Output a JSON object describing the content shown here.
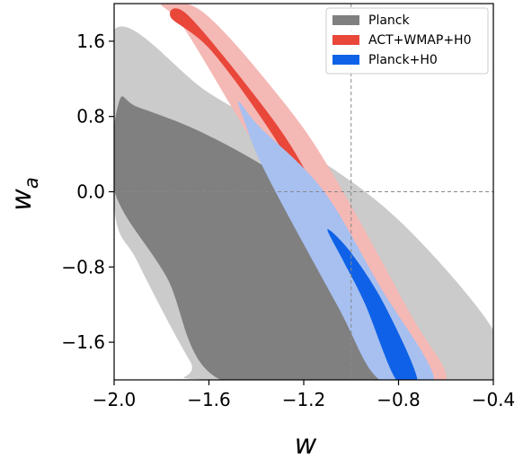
{
  "chart_data": {
    "type": "contour",
    "xlabel": "w",
    "ylabel": "w_a",
    "xlim": [
      -2.0,
      -0.4
    ],
    "ylim": [
      -2.0,
      2.0
    ],
    "xticks": [
      -2.0,
      -1.6,
      -1.2,
      -0.8,
      -0.4
    ],
    "xtick_labels": [
      "−2.0",
      "−1.6",
      "−1.2",
      "−0.8",
      "−0.4"
    ],
    "yticks": [
      -1.6,
      -0.8,
      0.0,
      0.8,
      1.6
    ],
    "ytick_labels": [
      "−1.6",
      "−0.8",
      "0.0",
      "0.8",
      "1.6"
    ],
    "reference_lines": {
      "x": -1.0,
      "y": 0.0,
      "style": "dashed"
    },
    "legend_position": "top-right",
    "series": [
      {
        "name": "Planck",
        "outer_color": "#cbcbcb",
        "inner_color": "#808080",
        "outer_contour": [
          [
            -2.0,
            1.72
          ],
          [
            -1.6,
            1.05
          ],
          [
            -1.2,
            0.45
          ],
          [
            -0.8,
            -0.3
          ],
          [
            -0.4,
            -1.47
          ],
          [
            -0.4,
            -2.0
          ],
          [
            -1.6,
            -2.0
          ],
          [
            -1.68,
            -1.8
          ],
          [
            -1.9,
            -0.75
          ],
          [
            -2.0,
            -0.15
          ]
        ],
        "inner_contour": [
          [
            -1.98,
            0.95
          ],
          [
            -1.9,
            0.9
          ],
          [
            -1.62,
            0.62
          ],
          [
            -1.3,
            0.16
          ],
          [
            -1.0,
            -0.46
          ],
          [
            -0.88,
            -0.96
          ],
          [
            -0.85,
            -2.0
          ],
          [
            -1.55,
            -2.0
          ],
          [
            -1.78,
            -0.9
          ],
          [
            -2.0,
            0.02
          ]
        ]
      },
      {
        "name": "ACT+WMAP+H0",
        "outer_color": "#f4b8b5",
        "inner_color": "#e8473a",
        "outer_contour": [
          [
            -1.8,
            2.0
          ],
          [
            -1.62,
            1.9
          ],
          [
            -1.3,
            1.0
          ],
          [
            -1.08,
            0.2
          ],
          [
            -0.75,
            -1.3
          ],
          [
            -0.6,
            -2.0
          ],
          [
            -0.86,
            -2.0
          ],
          [
            -1.0,
            -1.2
          ],
          [
            -1.2,
            -0.3
          ],
          [
            -1.42,
            0.55
          ],
          [
            -1.7,
            1.72
          ]
        ],
        "inner_contour": [
          [
            -1.76,
            1.85
          ],
          [
            -1.69,
            1.88
          ],
          [
            -1.4,
            1.0
          ],
          [
            -1.21,
            0.3
          ],
          [
            -1.02,
            -0.7
          ],
          [
            -0.96,
            -1.1
          ],
          [
            -1.14,
            -0.25
          ],
          [
            -1.33,
            0.6
          ],
          [
            -1.59,
            1.5
          ]
        ]
      },
      {
        "name": "Planck+H0",
        "outer_color": "#a7c0f0",
        "inner_color": "#0f62e8",
        "outer_contour": [
          [
            -1.47,
            0.95
          ],
          [
            -1.39,
            0.7
          ],
          [
            -1.12,
            0.02
          ],
          [
            -0.88,
            -1.0
          ],
          [
            -0.65,
            -2.0
          ],
          [
            -0.88,
            -2.0
          ],
          [
            -1.06,
            -1.2
          ],
          [
            -1.36,
            0.2
          ],
          [
            -1.46,
            0.82
          ]
        ],
        "inner_contour": [
          [
            -1.1,
            -0.4
          ],
          [
            -1.0,
            -0.65
          ],
          [
            -0.86,
            -1.2
          ],
          [
            -0.72,
            -2.0
          ],
          [
            -0.81,
            -2.0
          ],
          [
            -0.94,
            -1.2
          ],
          [
            -1.03,
            -0.75
          ]
        ]
      }
    ]
  }
}
